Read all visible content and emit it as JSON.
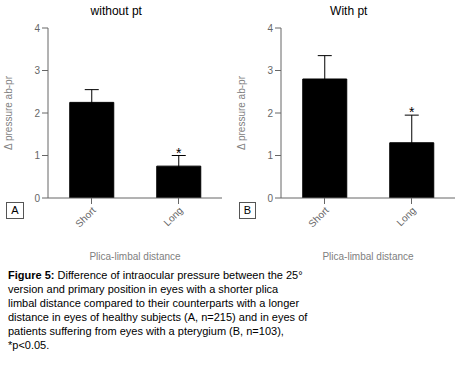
{
  "chart_data": [
    {
      "type": "bar",
      "title": "without pt",
      "label": "A",
      "categories": [
        "Short",
        "Long"
      ],
      "values": [
        2.25,
        0.75
      ],
      "errors": [
        0.3,
        0.25
      ],
      "color": "#000000",
      "ylabel": "Δ pressure ab-pr",
      "xlabel": "Plica-limbal distance",
      "ylim": [
        0,
        4
      ],
      "yticks": [
        0,
        1,
        2,
        3,
        4
      ],
      "grid": false,
      "annotations": [
        {
          "text": "*",
          "category": "Long"
        }
      ]
    },
    {
      "type": "bar",
      "title": "With pt",
      "label": "B",
      "categories": [
        "Short",
        "Long"
      ],
      "values": [
        2.8,
        1.3
      ],
      "errors": [
        0.55,
        0.65
      ],
      "color": "#000000",
      "ylabel": "Δ pressure ab-pr",
      "xlabel": "Plica-limbal distance",
      "ylim": [
        0,
        4
      ],
      "yticks": [
        0,
        1,
        2,
        3,
        4
      ],
      "grid": false,
      "annotations": [
        {
          "text": "*",
          "category": "Long"
        }
      ]
    }
  ],
  "caption_title": "Figure 5:",
  "caption": "Difference of intraocular pressure between the 25°\nversion and primary position in eyes with a shorter plica\nlimbal distance compared to their counterparts with a longer\ndistance in eyes of healthy subjects (A, n=215) and in eyes of\npatients suffering from eyes with a pterygium (B, n=103),\n*p<0.05."
}
